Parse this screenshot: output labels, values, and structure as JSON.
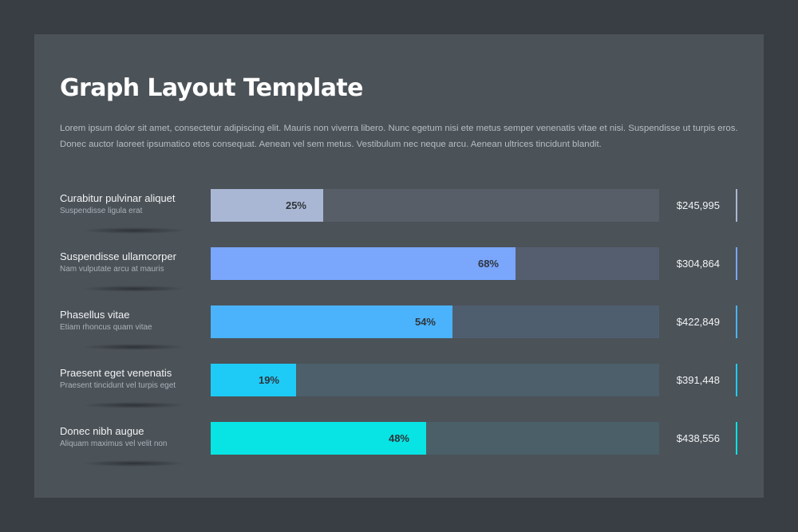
{
  "header": {
    "title": "Graph Layout Template",
    "description": "Lorem ipsum dolor sit amet, consectetur adipiscing elit. Mauris non viverra libero. Nunc egetum nisi ete metus semper venenatis vitae et nisi. Suspendisse ut turpis eros. Donec auctor laoreet ipsumatico etos consequat. Aenean vel sem metus. Vestibulum nec neque arcu. Aenean ultrices tincidunt blandit."
  },
  "chart_data": {
    "type": "bar",
    "orientation": "horizontal",
    "xlim": [
      0,
      100
    ],
    "categories": [
      "Curabitur pulvinar aliquet",
      "Suspendisse ullamcorper",
      "Phasellus vitae",
      "Praesent eget venenatis",
      "Donec nibh augue"
    ],
    "sublabels": [
      "Suspendisse ligula erat",
      "Nam vulputate arcu at mauris",
      "Etiam rhoncus quam vitae",
      "Praesent tincidunt vel turpis eget",
      "Aliquam maximus vel velit non"
    ],
    "values": [
      25,
      68,
      54,
      19,
      48
    ],
    "value_labels": [
      "25%",
      "68%",
      "54%",
      "19%",
      "48%"
    ],
    "amounts": [
      "$245,995",
      "$304,864",
      "$422,849",
      "$391,448",
      "$438,556"
    ],
    "colors": [
      "#aab7d4",
      "#7aa6fc",
      "#4ab3fb",
      "#1ecbf7",
      "#08e3e3"
    ],
    "track_colors": [
      "#585e67",
      "#545e6f",
      "#4f5e6f",
      "#4c5f6b",
      "#4a5f68"
    ]
  }
}
